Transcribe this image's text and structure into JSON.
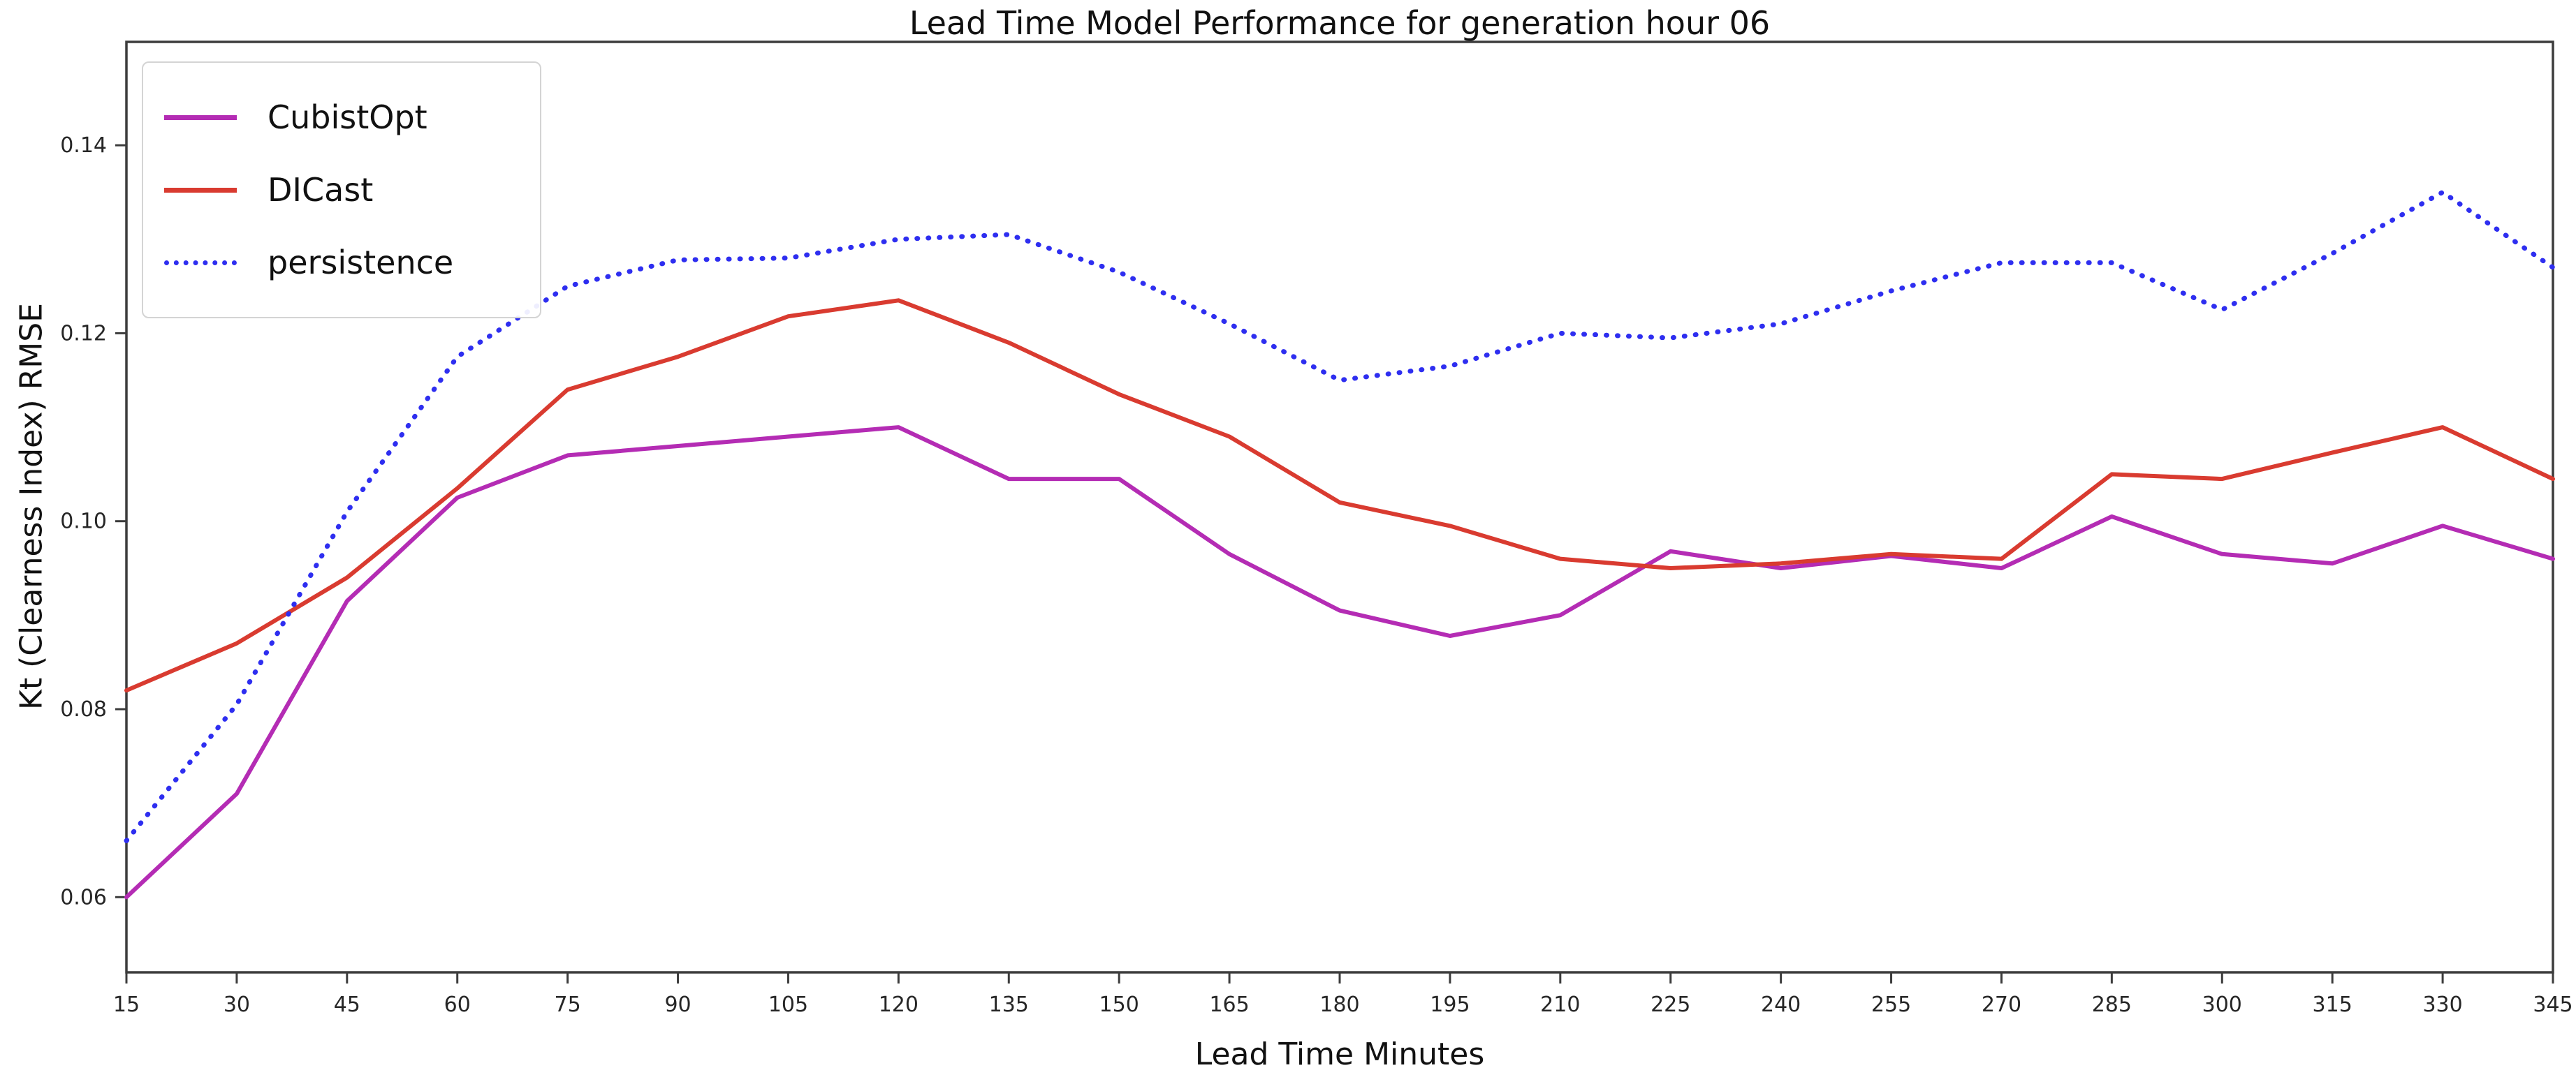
{
  "chart_data": {
    "type": "line",
    "title": "Lead Time Model Performance for generation hour 06",
    "xlabel": "Lead Time Minutes",
    "ylabel": "Kt (Clearness Index) RMSE",
    "x": [
      15,
      30,
      45,
      60,
      75,
      90,
      105,
      120,
      135,
      150,
      165,
      180,
      195,
      210,
      225,
      240,
      255,
      270,
      285,
      300,
      315,
      330,
      345
    ],
    "series": [
      {
        "name": "CubistOpt",
        "color": "#b42cb4",
        "style": "solid",
        "values": [
          0.06,
          0.071,
          0.0915,
          0.1025,
          0.107,
          0.108,
          0.109,
          0.11,
          0.1045,
          0.1045,
          0.0965,
          0.0905,
          0.0878,
          0.09,
          0.0968,
          0.095,
          0.0963,
          0.095,
          0.1005,
          0.0965,
          0.0955,
          0.0995,
          0.096
        ]
      },
      {
        "name": "DICast",
        "color": "#d93b30",
        "style": "solid",
        "values": [
          0.082,
          0.087,
          0.094,
          0.1035,
          0.114,
          0.1175,
          0.1218,
          0.1235,
          0.119,
          0.1135,
          0.109,
          0.102,
          0.0995,
          0.096,
          0.095,
          0.0955,
          0.0965,
          0.096,
          0.105,
          0.1045,
          0.1073,
          0.11,
          0.1045
        ]
      },
      {
        "name": "persistence",
        "color": "#2e2ef0",
        "style": "dotted",
        "values": [
          0.066,
          0.0805,
          0.101,
          0.1175,
          0.125,
          0.1278,
          0.128,
          0.13,
          0.1305,
          0.1265,
          0.121,
          0.115,
          0.1165,
          0.12,
          0.1195,
          0.121,
          0.1245,
          0.1275,
          0.1275,
          0.1225,
          0.1285,
          0.135,
          0.127
        ]
      }
    ],
    "xlim": [
      15,
      345
    ],
    "ylim": [
      0.052,
      0.151
    ],
    "xticks": [
      15,
      30,
      45,
      60,
      75,
      90,
      105,
      120,
      135,
      150,
      165,
      180,
      195,
      210,
      225,
      240,
      255,
      270,
      285,
      300,
      315,
      330,
      345
    ],
    "yticks": [
      0.06,
      0.08,
      0.1,
      0.12,
      0.14
    ],
    "ytick_labels": [
      "0.06",
      "0.08",
      "0.10",
      "0.12",
      "0.14"
    ],
    "grid": false,
    "legend_position": "upper left",
    "axis_color": "#3c3c3c",
    "tick_label_color": "#262626"
  }
}
